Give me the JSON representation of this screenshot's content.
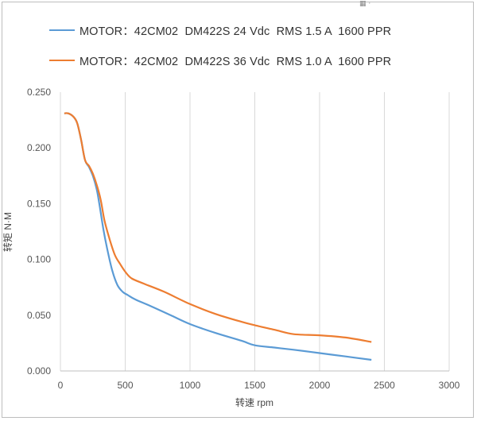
{
  "chart_data": {
    "type": "line",
    "title": "",
    "xlabel": "转速 rpm",
    "ylabel": "转矩 N·M",
    "xlim": [
      0,
      3000
    ],
    "ylim": [
      0,
      0.25
    ],
    "xticks": [
      0,
      500,
      1000,
      1500,
      2000,
      2500,
      3000
    ],
    "yticks": [
      "0.000",
      "0.050",
      "0.100",
      "0.150",
      "0.200",
      "0.250"
    ],
    "grid": "vertical",
    "legend_position": "top",
    "series": [
      {
        "name": "MOTOR：42CM02  DM422S 24 Vdc  RMS 1.5 A  1600 PPR",
        "color": "#5b9bd5",
        "points": [
          [
            30,
            0.231
          ],
          [
            60,
            0.231
          ],
          [
            100,
            0.228
          ],
          [
            130,
            0.222
          ],
          [
            160,
            0.207
          ],
          [
            190,
            0.189
          ],
          [
            220,
            0.183
          ],
          [
            250,
            0.175
          ],
          [
            280,
            0.163
          ],
          [
            300,
            0.15
          ],
          [
            330,
            0.128
          ],
          [
            360,
            0.11
          ],
          [
            400,
            0.09
          ],
          [
            440,
            0.077
          ],
          [
            480,
            0.071
          ],
          [
            520,
            0.068
          ],
          [
            580,
            0.064
          ],
          [
            700,
            0.058
          ],
          [
            850,
            0.05
          ],
          [
            1000,
            0.042
          ],
          [
            1200,
            0.034
          ],
          [
            1400,
            0.027
          ],
          [
            1500,
            0.023
          ],
          [
            1650,
            0.021
          ],
          [
            1800,
            0.019
          ],
          [
            2000,
            0.016
          ],
          [
            2200,
            0.013
          ],
          [
            2400,
            0.01
          ]
        ]
      },
      {
        "name": "MOTOR：42CM02  DM422S 36 Vdc  RMS 1.0 A  1600 PPR",
        "color": "#ed7d31",
        "points": [
          [
            30,
            0.231
          ],
          [
            60,
            0.231
          ],
          [
            100,
            0.228
          ],
          [
            130,
            0.222
          ],
          [
            160,
            0.207
          ],
          [
            190,
            0.189
          ],
          [
            220,
            0.184
          ],
          [
            250,
            0.177
          ],
          [
            280,
            0.167
          ],
          [
            310,
            0.154
          ],
          [
            340,
            0.135
          ],
          [
            380,
            0.118
          ],
          [
            420,
            0.104
          ],
          [
            460,
            0.096
          ],
          [
            500,
            0.089
          ],
          [
            550,
            0.083
          ],
          [
            650,
            0.078
          ],
          [
            800,
            0.071
          ],
          [
            1000,
            0.06
          ],
          [
            1200,
            0.051
          ],
          [
            1400,
            0.044
          ],
          [
            1500,
            0.041
          ],
          [
            1650,
            0.037
          ],
          [
            1800,
            0.033
          ],
          [
            2000,
            0.032
          ],
          [
            2200,
            0.03
          ],
          [
            2400,
            0.026
          ]
        ]
      }
    ]
  },
  "corner_icon": "qr-code-icon"
}
